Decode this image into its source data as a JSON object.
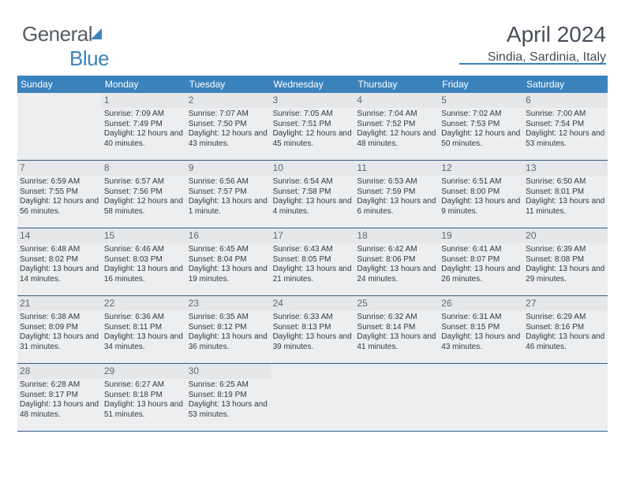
{
  "brand": {
    "part1": "General",
    "part2": "Blue"
  },
  "title": "April 2024",
  "location": "Sindia, Sardinia, Italy",
  "colors": {
    "accent": "#3b83bd",
    "text": "#474e58",
    "cell_border": "#2f5d8a",
    "off_bg": "#eceeef"
  },
  "weekdays": [
    "Sunday",
    "Monday",
    "Tuesday",
    "Wednesday",
    "Thursday",
    "Friday",
    "Saturday"
  ],
  "layout": {
    "first_weekday_index": 1,
    "days_in_month": 30,
    "rows": 5
  },
  "days": [
    {
      "n": 1,
      "sr": "7:09 AM",
      "ss": "7:49 PM",
      "dl": "12 hours and 40 minutes."
    },
    {
      "n": 2,
      "sr": "7:07 AM",
      "ss": "7:50 PM",
      "dl": "12 hours and 43 minutes."
    },
    {
      "n": 3,
      "sr": "7:05 AM",
      "ss": "7:51 PM",
      "dl": "12 hours and 45 minutes."
    },
    {
      "n": 4,
      "sr": "7:04 AM",
      "ss": "7:52 PM",
      "dl": "12 hours and 48 minutes."
    },
    {
      "n": 5,
      "sr": "7:02 AM",
      "ss": "7:53 PM",
      "dl": "12 hours and 50 minutes."
    },
    {
      "n": 6,
      "sr": "7:00 AM",
      "ss": "7:54 PM",
      "dl": "12 hours and 53 minutes."
    },
    {
      "n": 7,
      "sr": "6:59 AM",
      "ss": "7:55 PM",
      "dl": "12 hours and 56 minutes."
    },
    {
      "n": 8,
      "sr": "6:57 AM",
      "ss": "7:56 PM",
      "dl": "12 hours and 58 minutes."
    },
    {
      "n": 9,
      "sr": "6:56 AM",
      "ss": "7:57 PM",
      "dl": "13 hours and 1 minute."
    },
    {
      "n": 10,
      "sr": "6:54 AM",
      "ss": "7:58 PM",
      "dl": "13 hours and 4 minutes."
    },
    {
      "n": 11,
      "sr": "6:53 AM",
      "ss": "7:59 PM",
      "dl": "13 hours and 6 minutes."
    },
    {
      "n": 12,
      "sr": "6:51 AM",
      "ss": "8:00 PM",
      "dl": "13 hours and 9 minutes."
    },
    {
      "n": 13,
      "sr": "6:50 AM",
      "ss": "8:01 PM",
      "dl": "13 hours and 11 minutes."
    },
    {
      "n": 14,
      "sr": "6:48 AM",
      "ss": "8:02 PM",
      "dl": "13 hours and 14 minutes."
    },
    {
      "n": 15,
      "sr": "6:46 AM",
      "ss": "8:03 PM",
      "dl": "13 hours and 16 minutes."
    },
    {
      "n": 16,
      "sr": "6:45 AM",
      "ss": "8:04 PM",
      "dl": "13 hours and 19 minutes."
    },
    {
      "n": 17,
      "sr": "6:43 AM",
      "ss": "8:05 PM",
      "dl": "13 hours and 21 minutes."
    },
    {
      "n": 18,
      "sr": "6:42 AM",
      "ss": "8:06 PM",
      "dl": "13 hours and 24 minutes."
    },
    {
      "n": 19,
      "sr": "6:41 AM",
      "ss": "8:07 PM",
      "dl": "13 hours and 26 minutes."
    },
    {
      "n": 20,
      "sr": "6:39 AM",
      "ss": "8:08 PM",
      "dl": "13 hours and 29 minutes."
    },
    {
      "n": 21,
      "sr": "6:38 AM",
      "ss": "8:09 PM",
      "dl": "13 hours and 31 minutes."
    },
    {
      "n": 22,
      "sr": "6:36 AM",
      "ss": "8:11 PM",
      "dl": "13 hours and 34 minutes."
    },
    {
      "n": 23,
      "sr": "6:35 AM",
      "ss": "8:12 PM",
      "dl": "13 hours and 36 minutes."
    },
    {
      "n": 24,
      "sr": "6:33 AM",
      "ss": "8:13 PM",
      "dl": "13 hours and 39 minutes."
    },
    {
      "n": 25,
      "sr": "6:32 AM",
      "ss": "8:14 PM",
      "dl": "13 hours and 41 minutes."
    },
    {
      "n": 26,
      "sr": "6:31 AM",
      "ss": "8:15 PM",
      "dl": "13 hours and 43 minutes."
    },
    {
      "n": 27,
      "sr": "6:29 AM",
      "ss": "8:16 PM",
      "dl": "13 hours and 46 minutes."
    },
    {
      "n": 28,
      "sr": "6:28 AM",
      "ss": "8:17 PM",
      "dl": "13 hours and 48 minutes."
    },
    {
      "n": 29,
      "sr": "6:27 AM",
      "ss": "8:18 PM",
      "dl": "13 hours and 51 minutes."
    },
    {
      "n": 30,
      "sr": "6:25 AM",
      "ss": "8:19 PM",
      "dl": "13 hours and 53 minutes."
    }
  ],
  "labels": {
    "sunrise": "Sunrise:",
    "sunset": "Sunset:",
    "daylight": "Daylight:"
  }
}
